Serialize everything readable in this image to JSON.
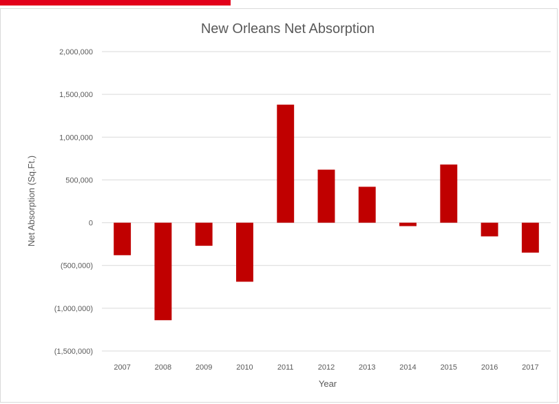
{
  "chart_data": {
    "type": "bar",
    "title": "New Orleans Net Absorption",
    "xlabel": "Year",
    "ylabel": "Net Absorption (Sq.Ft.)",
    "ylim": [
      -1500000,
      2000000
    ],
    "yticks": [
      2000000,
      1500000,
      1000000,
      500000,
      0,
      -500000,
      -1000000,
      -1500000
    ],
    "ytick_labels": [
      "2,000,000",
      "1,500,000",
      "1,000,000",
      "500,000",
      "0",
      "(500,000)",
      "(1,000,000)",
      "(1,500,000)"
    ],
    "categories": [
      "2007",
      "2008",
      "2009",
      "2010",
      "2011",
      "2012",
      "2013",
      "2014",
      "2015",
      "2016",
      "2017"
    ],
    "values": [
      -380000,
      -1140000,
      -270000,
      -690000,
      1380000,
      620000,
      420000,
      -40000,
      680000,
      -160000,
      -350000
    ],
    "grid": true,
    "legend": "none"
  },
  "colors": {
    "bar": "#c00000",
    "accent": "#e2001a"
  }
}
